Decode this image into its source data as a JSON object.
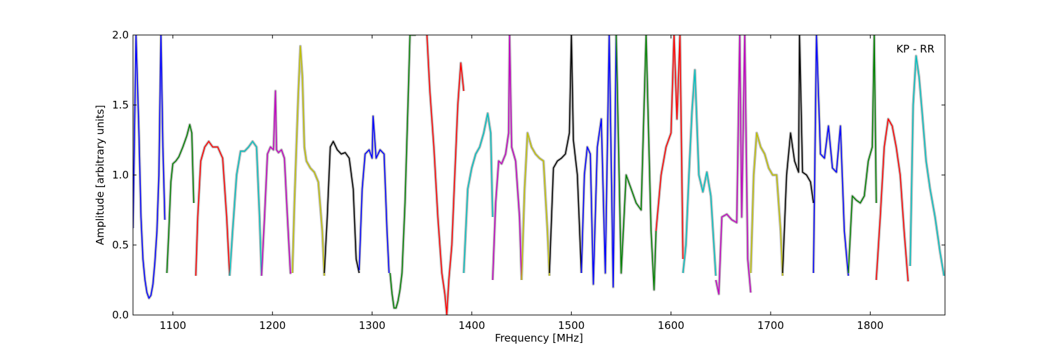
{
  "chart_data": {
    "type": "line",
    "title": "",
    "annotation": "KP - RR",
    "xlabel": "Frequency [MHz]",
    "ylabel": "Amplitude [arbitrary units]",
    "xlim": [
      1060,
      1875
    ],
    "ylim": [
      0.0,
      2.0
    ],
    "xticks": [
      1100,
      1200,
      1300,
      1400,
      1500,
      1600,
      1700,
      1800
    ],
    "yticks": [
      0.0,
      0.5,
      1.0,
      1.5,
      2.0
    ],
    "xtick_labels": [
      "1100",
      "1200",
      "1300",
      "1400",
      "1500",
      "1600",
      "1700",
      "1800"
    ],
    "ytick_labels": [
      "0.0",
      "0.5",
      "1.0",
      "1.5",
      "2.0"
    ],
    "grid": false,
    "legend": "none",
    "background_color": "#c0c0c0",
    "series": [
      {
        "color": "#0000ff",
        "x": [
          1060,
          1063,
          1066,
          1068,
          1070,
          1072,
          1074,
          1076,
          1078,
          1080,
          1082,
          1084,
          1086,
          1088,
          1090,
          1092
        ],
        "y": [
          0.62,
          2.0,
          1.3,
          0.7,
          0.4,
          0.25,
          0.16,
          0.12,
          0.14,
          0.22,
          0.38,
          0.6,
          1.0,
          2.0,
          1.2,
          0.68
        ]
      },
      {
        "color": "#008000",
        "x": [
          1094,
          1096,
          1098,
          1100,
          1103,
          1106,
          1110,
          1114,
          1117,
          1119,
          1121
        ],
        "y": [
          0.3,
          0.6,
          0.95,
          1.08,
          1.1,
          1.13,
          1.2,
          1.28,
          1.36,
          1.3,
          0.8
        ]
      },
      {
        "color": "#ff0000",
        "x": [
          1123,
          1125,
          1128,
          1132,
          1136,
          1140,
          1145,
          1150,
          1154,
          1157
        ],
        "y": [
          0.28,
          0.7,
          1.1,
          1.2,
          1.24,
          1.2,
          1.2,
          1.12,
          0.7,
          0.28
        ]
      },
      {
        "color": "#00bfbf",
        "x": [
          1157,
          1160,
          1164,
          1168,
          1172,
          1176,
          1180,
          1184,
          1187,
          1189
        ],
        "y": [
          0.28,
          0.6,
          1.0,
          1.17,
          1.17,
          1.2,
          1.24,
          1.2,
          0.7,
          0.28
        ]
      },
      {
        "color": "#bf00bf",
        "x": [
          1189,
          1192,
          1195,
          1198,
          1201,
          1203,
          1204,
          1206,
          1209,
          1212,
          1215,
          1218,
          1219
        ],
        "y": [
          0.28,
          0.7,
          1.15,
          1.2,
          1.18,
          1.6,
          1.18,
          1.16,
          1.18,
          1.12,
          0.7,
          0.3,
          0.3
        ]
      },
      {
        "color": "#bfbf00",
        "x": [
          1220,
          1222,
          1224,
          1226,
          1228,
          1230,
          1232,
          1234,
          1238,
          1242,
          1246,
          1250,
          1252
        ],
        "y": [
          0.3,
          0.8,
          1.2,
          1.6,
          1.92,
          1.7,
          1.2,
          1.1,
          1.05,
          1.02,
          0.95,
          0.6,
          0.28
        ]
      },
      {
        "color": "#000000",
        "x": [
          1252,
          1255,
          1258,
          1261,
          1265,
          1269,
          1273,
          1277,
          1281,
          1284,
          1287
        ],
        "y": [
          0.3,
          0.7,
          1.2,
          1.24,
          1.18,
          1.15,
          1.16,
          1.12,
          0.9,
          0.4,
          0.3
        ]
      },
      {
        "color": "#0000ff",
        "x": [
          1287,
          1290,
          1293,
          1297,
          1300,
          1301,
          1304,
          1308,
          1312,
          1315,
          1317
        ],
        "y": [
          0.32,
          0.9,
          1.15,
          1.18,
          1.12,
          1.42,
          1.12,
          1.18,
          1.15,
          0.6,
          0.3
        ]
      },
      {
        "color": "#008000",
        "x": [
          1318,
          1320,
          1322,
          1324,
          1326,
          1328,
          1330,
          1333,
          1336,
          1338,
          1340,
          1342,
          1344
        ],
        "y": [
          0.3,
          0.15,
          0.05,
          0.05,
          0.1,
          0.18,
          0.3,
          0.8,
          1.5,
          2.0,
          2.0,
          2.0,
          2.0
        ]
      },
      {
        "color": "#ff0000",
        "x": [
          1355,
          1358,
          1362,
          1366,
          1370,
          1373,
          1375,
          1377,
          1380,
          1383,
          1386,
          1389,
          1392
        ],
        "y": [
          2.0,
          1.6,
          1.2,
          0.7,
          0.3,
          0.15,
          0.0,
          0.25,
          0.5,
          1.0,
          1.5,
          1.8,
          1.6
        ]
      },
      {
        "color": "#00bfbf",
        "x": [
          1392,
          1396,
          1400,
          1404,
          1408,
          1412,
          1416,
          1419,
          1421
        ],
        "y": [
          0.3,
          0.9,
          1.05,
          1.15,
          1.2,
          1.3,
          1.44,
          1.3,
          0.7
        ]
      },
      {
        "color": "#bf00bf",
        "x": [
          1421,
          1424,
          1427,
          1430,
          1434,
          1437,
          1438,
          1440,
          1444,
          1448,
          1450
        ],
        "y": [
          0.25,
          0.8,
          1.1,
          1.08,
          1.15,
          1.3,
          2.0,
          1.2,
          1.1,
          0.7,
          0.25
        ]
      },
      {
        "color": "#bfbf00",
        "x": [
          1450,
          1453,
          1456,
          1460,
          1464,
          1468,
          1472,
          1476,
          1478
        ],
        "y": [
          0.25,
          0.9,
          1.3,
          1.2,
          1.15,
          1.12,
          1.1,
          0.6,
          0.28
        ]
      },
      {
        "color": "#000000",
        "x": [
          1478,
          1482,
          1486,
          1490,
          1494,
          1498,
          1500,
          1502,
          1506,
          1510
        ],
        "y": [
          0.3,
          1.05,
          1.1,
          1.12,
          1.15,
          1.3,
          2.0,
          1.25,
          1.0,
          0.3
        ]
      },
      {
        "color": "#0000ff",
        "x": [
          1510,
          1513,
          1516,
          1519,
          1522,
          1526,
          1530,
          1534,
          1538,
          1542,
          1545
        ],
        "y": [
          0.3,
          1.0,
          1.2,
          1.15,
          0.22,
          1.2,
          1.4,
          0.3,
          2.0,
          0.2,
          2.0
        ]
      },
      {
        "color": "#008000",
        "x": [
          1545,
          1550,
          1555,
          1560,
          1565,
          1570,
          1575,
          1580,
          1583,
          1585
        ],
        "y": [
          2.0,
          0.3,
          1.0,
          0.9,
          0.8,
          0.75,
          2.0,
          0.6,
          0.18,
          0.6
        ]
      },
      {
        "color": "#ff0000",
        "x": [
          1585,
          1590,
          1595,
          1600,
          1603,
          1606,
          1609,
          1612
        ],
        "y": [
          0.6,
          1.0,
          1.2,
          1.3,
          2.0,
          1.4,
          2.0,
          0.4
        ]
      },
      {
        "color": "#00bfbf",
        "x": [
          1612,
          1615,
          1618,
          1621,
          1624,
          1628,
          1632,
          1636,
          1640,
          1645
        ],
        "y": [
          0.3,
          0.5,
          1.0,
          1.45,
          1.75,
          1.0,
          0.88,
          1.02,
          0.85,
          0.28
        ]
      },
      {
        "color": "#bf00bf",
        "x": [
          1645,
          1648,
          1651,
          1656,
          1661,
          1666,
          1669,
          1671,
          1674,
          1677,
          1680
        ],
        "y": [
          0.25,
          0.15,
          0.7,
          0.72,
          0.68,
          0.66,
          2.0,
          0.7,
          2.0,
          0.4,
          0.16
        ]
      },
      {
        "color": "#bfbf00",
        "x": [
          1680,
          1683,
          1686,
          1690,
          1694,
          1698,
          1702,
          1706,
          1710,
          1712
        ],
        "y": [
          0.3,
          1.0,
          1.3,
          1.2,
          1.15,
          1.05,
          1.0,
          1.0,
          0.6,
          0.28
        ]
      },
      {
        "color": "#000000",
        "x": [
          1712,
          1716,
          1720,
          1724,
          1728,
          1729,
          1732,
          1736,
          1740,
          1743
        ],
        "y": [
          0.3,
          1.0,
          1.3,
          1.1,
          1.02,
          2.0,
          1.02,
          1.0,
          0.95,
          0.8
        ]
      },
      {
        "color": "#0000ff",
        "x": [
          1743,
          1746,
          1750,
          1754,
          1758,
          1762,
          1766,
          1770,
          1774,
          1778
        ],
        "y": [
          0.3,
          2.0,
          1.15,
          1.12,
          1.35,
          1.05,
          1.02,
          1.35,
          0.6,
          0.28
        ]
      },
      {
        "color": "#008000",
        "x": [
          1778,
          1782,
          1786,
          1790,
          1794,
          1798,
          1802,
          1804,
          1806
        ],
        "y": [
          0.3,
          0.85,
          0.82,
          0.8,
          0.85,
          1.1,
          1.2,
          2.0,
          0.8
        ]
      },
      {
        "color": "#ff0000",
        "x": [
          1806,
          1810,
          1814,
          1818,
          1822,
          1826,
          1830,
          1834,
          1838
        ],
        "y": [
          0.25,
          0.7,
          1.2,
          1.4,
          1.35,
          1.2,
          1.0,
          0.6,
          0.24
        ]
      },
      {
        "color": "#00bfbf",
        "x": [
          1840,
          1843,
          1846,
          1849,
          1852,
          1856,
          1860,
          1865,
          1870,
          1874
        ],
        "y": [
          0.35,
          1.5,
          1.85,
          1.7,
          1.45,
          1.1,
          0.9,
          0.7,
          0.45,
          0.28
        ]
      }
    ]
  }
}
